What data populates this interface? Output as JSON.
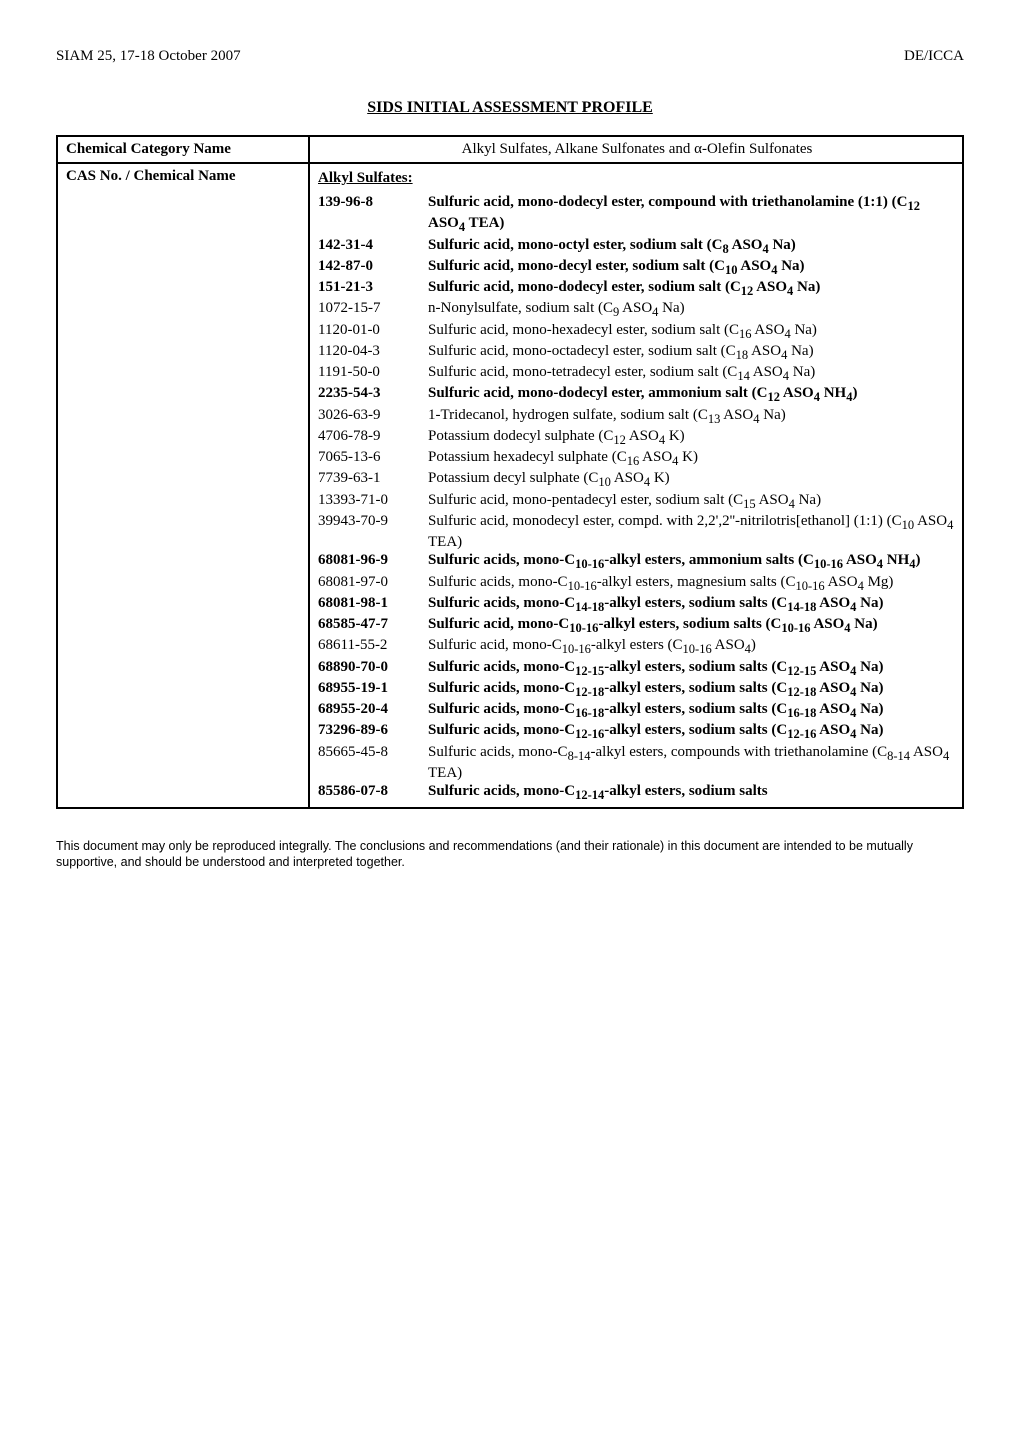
{
  "header": {
    "left": "SIAM 25, 17-18 October 2007",
    "right": "DE/ICCA"
  },
  "title": "SIDS INITIAL ASSESSMENT PROFILE",
  "row1": {
    "left": "Chemical Category Name",
    "right": "Alkyl Sulfates, Alkane Sulfonates and α-Olefin Sulfonates"
  },
  "row2_left": "CAS No. / Chemical Name",
  "section1": "Alkyl Sulfates:",
  "entries": [
    {
      "cas": "139-96-8",
      "bold": true,
      "html": "Sulfuric acid, mono-dodecyl ester, compound with triethanolamine (1:1) (C<sub>12</sub> ASO<sub>4</sub> TEA)"
    },
    {
      "cas": "142-31-4",
      "bold": true,
      "html": "Sulfuric acid, mono-octyl ester, sodium salt (C<sub>8</sub> ASO<sub>4</sub> Na)"
    },
    {
      "cas": "142-87-0",
      "bold": true,
      "html": "Sulfuric acid, mono-decyl ester, sodium salt (C<sub>10</sub> ASO<sub>4</sub> Na)"
    },
    {
      "cas": "151-21-3",
      "bold": true,
      "html": "Sulfuric acid, mono-dodecyl ester, sodium salt (C<sub>12</sub> ASO<sub>4</sub> Na)"
    },
    {
      "cas": "1072-15-7",
      "bold": false,
      "html": "n-Nonylsulfate, sodium salt (C<sub>9</sub> ASO<sub>4</sub> Na)"
    },
    {
      "cas": "1120-01-0",
      "bold": false,
      "html": "Sulfuric acid, mono-hexadecyl ester, sodium salt (C<sub>16</sub> ASO<sub>4</sub> Na)"
    },
    {
      "cas": "1120-04-3",
      "bold": false,
      "html": "Sulfuric acid, mono-octadecyl ester, sodium salt (C<sub>18</sub> ASO<sub>4</sub> Na)"
    },
    {
      "cas": "1191-50-0",
      "bold": false,
      "html": "Sulfuric acid, mono-tetradecyl ester, sodium salt (C<sub>14</sub> ASO<sub>4</sub> Na)"
    },
    {
      "cas": "2235-54-3",
      "bold": true,
      "html": "Sulfuric acid, mono-dodecyl ester, ammonium salt (C<sub>12</sub> ASO<sub>4</sub> NH<sub>4</sub>)"
    },
    {
      "cas": "3026-63-9",
      "bold": false,
      "html": "1-Tridecanol, hydrogen sulfate, sodium salt (C<sub>13</sub> ASO<sub>4</sub> Na)"
    },
    {
      "cas": "4706-78-9",
      "bold": false,
      "html": "Potassium dodecyl sulphate (C<sub>12</sub> ASO<sub>4</sub> K)"
    },
    {
      "cas": "7065-13-6",
      "bold": false,
      "html": "Potassium hexadecyl sulphate (C<sub>16</sub> ASO<sub>4</sub> K)"
    },
    {
      "cas": "7739-63-1",
      "bold": false,
      "html": "Potassium decyl sulphate (C<sub>10</sub> ASO<sub>4</sub> K)"
    },
    {
      "cas": "13393-71-0",
      "bold": false,
      "html": "Sulfuric acid, mono-pentadecyl ester, sodium salt (C<sub>15</sub> ASO<sub>4</sub> Na)"
    },
    {
      "cas": "39943-70-9",
      "bold": false,
      "html": "Sulfuric acid, monodecyl ester, compd. with 2,2',2''-nitrilotris[ethanol] (1:1) (C<sub>10</sub> ASO<sub>4</sub> TEA)"
    },
    {
      "cas": "68081-96-9",
      "bold": true,
      "html": "Sulfuric acids, mono-C<sub>10-16</sub>-alkyl esters, ammonium salts (C<sub>10-16</sub> ASO<sub>4</sub> NH<sub>4</sub>)"
    },
    {
      "cas": "68081-97-0",
      "bold": false,
      "html": "Sulfuric acids, mono-C<sub>10-16</sub>-alkyl esters, magnesium salts (C<sub>10-16</sub> ASO<sub>4</sub> Mg)"
    },
    {
      "cas": "68081-98-1",
      "bold": true,
      "html": "Sulfuric acids, mono-C<sub>14-18</sub>-alkyl esters, sodium salts (C<sub>14-18</sub> ASO<sub>4</sub> Na)"
    },
    {
      "cas": "68585-47-7",
      "bold": true,
      "html": "Sulfuric acid, mono-C<sub>10-16</sub>-alkyl esters, sodium salts (C<sub>10-16</sub> ASO<sub>4</sub> Na)"
    },
    {
      "cas": "68611-55-2",
      "bold": false,
      "html": "Sulfuric acid, mono-C<sub>10-16</sub>-alkyl esters (C<sub>10-16</sub> ASO<sub>4</sub>)"
    },
    {
      "cas": "68890-70-0",
      "bold": true,
      "html": "Sulfuric acids, mono-C<sub>12-15</sub>-alkyl esters, sodium salts (C<sub>12-15</sub> ASO<sub>4</sub> Na)"
    },
    {
      "cas": "68955-19-1",
      "bold": true,
      "html": "Sulfuric acids, mono-C<sub>12-18</sub>-alkyl esters, sodium salts (C<sub>12-18</sub> ASO<sub>4</sub> Na)"
    },
    {
      "cas": "68955-20-4",
      "bold": true,
      "html": "Sulfuric acids, mono-C<sub>16-18</sub>-alkyl esters, sodium salts (C<sub>16-18</sub> ASO<sub>4</sub> Na)"
    },
    {
      "cas": "73296-89-6",
      "bold": true,
      "html": "Sulfuric acids, mono-C<sub>12-16</sub>-alkyl esters, sodium salts (C<sub>12-16</sub> ASO<sub>4</sub> Na)"
    },
    {
      "cas": "85665-45-8",
      "bold": false,
      "html": "Sulfuric acids, mono-C<sub>8-14</sub>-alkyl esters, compounds with triethanolamine (C<sub>8-14</sub> ASO<sub>4</sub> TEA)"
    },
    {
      "cas": "85586-07-8",
      "bold": true,
      "html": "Sulfuric acids, mono-C<sub>12-14</sub>-alkyl esters, sodium salts"
    }
  ],
  "footnote": "This document may only be reproduced integrally. The conclusions and recommendations (and their rationale) in this document are intended to be mutually supportive, and should be understood and interpreted together."
}
